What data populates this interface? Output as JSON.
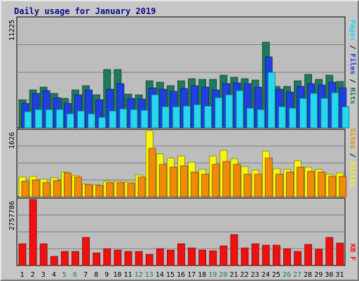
{
  "chart_data": {
    "type": "bar",
    "title": "Daily usage for January 2019",
    "categories": [
      "1",
      "2",
      "3",
      "4",
      "5",
      "6",
      "7",
      "8",
      "9",
      "10",
      "11",
      "12",
      "13",
      "14",
      "15",
      "16",
      "17",
      "18",
      "19",
      "20",
      "21",
      "22",
      "23",
      "24",
      "25",
      "26",
      "27",
      "28",
      "29",
      "30",
      "31"
    ],
    "weekend_days": [
      "5",
      "6",
      "12",
      "13",
      "19",
      "20",
      "26",
      "27"
    ],
    "panels": [
      {
        "name": "hits_files_pages",
        "ymax_label": "11225",
        "ymax": 11225,
        "side_labels": [
          "Pages",
          "Files",
          "Hits"
        ],
        "series": [
          {
            "name": "Hits",
            "color": "#1e7b5a",
            "values": [
              2900,
              3900,
              4200,
              3500,
              3000,
              3850,
              4350,
              3400,
              5950,
              5950,
              3450,
              3350,
              4850,
              4650,
              4350,
              4850,
              5050,
              5000,
              5000,
              5400,
              5200,
              5050,
              4900,
              8800,
              4250,
              4250,
              4850,
              5450,
              5000,
              5400,
              4750
            ]
          },
          {
            "name": "Files",
            "color": "#1f3fdf",
            "values": [
              2550,
              3500,
              3800,
              3100,
              2550,
              3350,
              3850,
              2850,
              3950,
              4500,
              3050,
              2950,
              4100,
              3950,
              3750,
              4050,
              4350,
              4200,
              3900,
              4500,
              4600,
              4500,
              4150,
              7300,
              3950,
              3650,
              4250,
              4550,
              4400,
              4650,
              4100
            ]
          },
          {
            "name": "Pages",
            "color": "#25d7ef",
            "values": [
              1650,
              1850,
              1900,
              1900,
              1450,
              1700,
              1450,
              1050,
              1750,
              1950,
              1850,
              1800,
              3400,
              2150,
              2150,
              2250,
              2350,
              2200,
              3100,
              3350,
              3800,
              2050,
              1850,
              5700,
              2150,
              2050,
              3050,
              3500,
              3000,
              3600,
              2150
            ]
          }
        ]
      },
      {
        "name": "visits_sites",
        "ymax_label": "1626",
        "ymax": 1626,
        "side_labels": [
          "Sites",
          "Visits"
        ],
        "series": [
          {
            "name": "Visits",
            "color": "#f5f50f",
            "values": [
              480,
              500,
              440,
              460,
              610,
              520,
              310,
              300,
              380,
              380,
              360,
              530,
              1626,
              1050,
              960,
              1010,
              840,
              680,
              1010,
              1140,
              930,
              740,
              650,
              1120,
              690,
              680,
              880,
              720,
              680,
              550,
              580
            ]
          },
          {
            "name": "Sites",
            "color": "#f08a0a",
            "values": [
              380,
              420,
              350,
              400,
              580,
              490,
              290,
              280,
              350,
              340,
              330,
              480,
              1190,
              800,
              730,
              760,
              600,
              550,
              800,
              860,
              790,
              550,
              560,
              950,
              560,
              600,
              720,
              620,
              610,
              500,
              500
            ]
          }
        ]
      },
      {
        "name": "kbytes",
        "ymax_label": "2757786",
        "ymax": 2757786,
        "side_labels": [
          "KB F"
        ],
        "series": [
          {
            "name": "KB F",
            "color": "#f01010",
            "values": [
              920000,
              2757786,
              920000,
              380000,
              600000,
              600000,
              1160000,
              540000,
              690000,
              650000,
              590000,
              600000,
              480000,
              700000,
              660000,
              920000,
              740000,
              640000,
              610000,
              810000,
              1290000,
              740000,
              920000,
              860000,
              840000,
              690000,
              600000,
              890000,
              670000,
              1170000,
              950000
            ]
          }
        ]
      }
    ]
  }
}
